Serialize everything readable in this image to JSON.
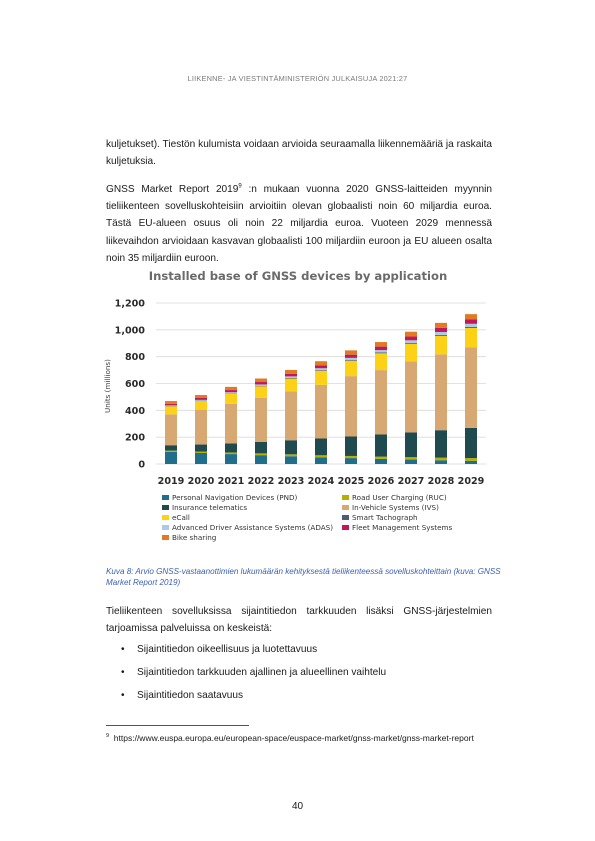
{
  "header": {
    "text": "LIIKENNE- JA VIESTINTÄMINISTERIÖN JULKAISUJA 2021:27"
  },
  "paragraphs": {
    "p1": "kuljetukset). Tiestön kulumista voidaan arvioida seuraamalla liikennemääriä ja raskaita kuljetuksia.",
    "p2_before": "GNSS Market Report 2019",
    "p2_sup": "9",
    "p2_after": " :n mukaan vuonna 2020 GNSS-laitteiden myynnin tieliikenteen sovelluskohteisiin arvioitiin olevan globaalisti noin 60 miljardia euroa. Tästä EU-alueen osuus oli noin 22 miljardia euroa. Vuoteen 2029 mennessä liikevaihdon arvioidaan kasvavan globaalisti 100 miljardiin euroon ja EU alueen osalta noin 35 miljardiin euroon.",
    "p3": "Tieliikenteen sovelluksissa sijaintitiedon tarkkuuden lisäksi GNSS-järjestelmien tarjoamissa palveluissa on keskeistä:"
  },
  "caption": "Kuva 8: Arvio GNSS-vastaanottimien lukumäärän kehityksestä tieliikenteessä sovelluskohteittain (kuva: GNSS Market Report 2019)",
  "bullets": [
    "Sijaintitiedon oikeellisuus ja luotettavuus",
    "Sijaintitiedon tarkkuuden ajallinen ja alueellinen vaihtelu",
    "Sijaintitiedon saatavuus"
  ],
  "bullet_glyph": "•",
  "footnote": {
    "number": "9",
    "text": "https://www.euspa.europa.eu/european-space/euspace-market/gnss-market/gnss-market-report"
  },
  "page_number": "40",
  "chart_data": {
    "type": "bar",
    "stacked": true,
    "title": "Installed base of GNSS devices by application",
    "ylabel": "Units (millions)",
    "xlabel": "",
    "ylim": [
      0,
      1200
    ],
    "yticks": [
      0,
      200,
      400,
      600,
      800,
      1000,
      1200
    ],
    "ytick_labels": [
      "0",
      "200",
      "400",
      "600",
      "800",
      "1,000",
      "1,200"
    ],
    "grid": true,
    "legend_position": "bottom",
    "categories": [
      "2019",
      "2020",
      "2021",
      "2022",
      "2023",
      "2024",
      "2025",
      "2026",
      "2027",
      "2028",
      "2029"
    ],
    "series": [
      {
        "name": "Personal Navigation Devices (PND)",
        "color": "#1f6e8c",
        "values": [
          90,
          82,
          74,
          66,
          58,
          50,
          44,
          38,
          33,
          28,
          24
        ]
      },
      {
        "name": "Road User Charging (RUC)",
        "color": "#b8b000",
        "values": [
          10,
          11,
          12,
          13,
          14,
          15,
          16,
          17,
          18,
          19,
          20
        ]
      },
      {
        "name": "Insurance telematics",
        "color": "#1f4a4f",
        "values": [
          40,
          52,
          68,
          85,
          105,
          125,
          145,
          165,
          185,
          205,
          225
        ]
      },
      {
        "name": "In-Vehicle Systems (IVS)",
        "color": "#d8a873",
        "values": [
          230,
          260,
          295,
          330,
          365,
          400,
          450,
          480,
          530,
          565,
          600
        ]
      },
      {
        "name": "eCall",
        "color": "#fcd116",
        "values": [
          60,
          64,
          75,
          85,
          95,
          105,
          115,
          125,
          130,
          138,
          145
        ]
      },
      {
        "name": "Smart Tachograph",
        "color": "#4d5e73",
        "values": [
          2,
          3,
          3,
          4,
          4,
          5,
          5,
          6,
          6,
          7,
          7
        ]
      },
      {
        "name": "Advanced Driver Assistance Systems (ADAS)",
        "color": "#a9cbe8",
        "values": [
          5,
          6,
          8,
          10,
          12,
          14,
          16,
          18,
          20,
          22,
          24
        ]
      },
      {
        "name": "Fleet Management Systems",
        "color": "#c2185b",
        "values": [
          12,
          14,
          16,
          18,
          20,
          22,
          24,
          26,
          28,
          30,
          32
        ]
      },
      {
        "name": "Bike sharing",
        "color": "#e07b24",
        "values": [
          20,
          22,
          24,
          26,
          28,
          30,
          32,
          34,
          36,
          38,
          40
        ]
      }
    ]
  }
}
